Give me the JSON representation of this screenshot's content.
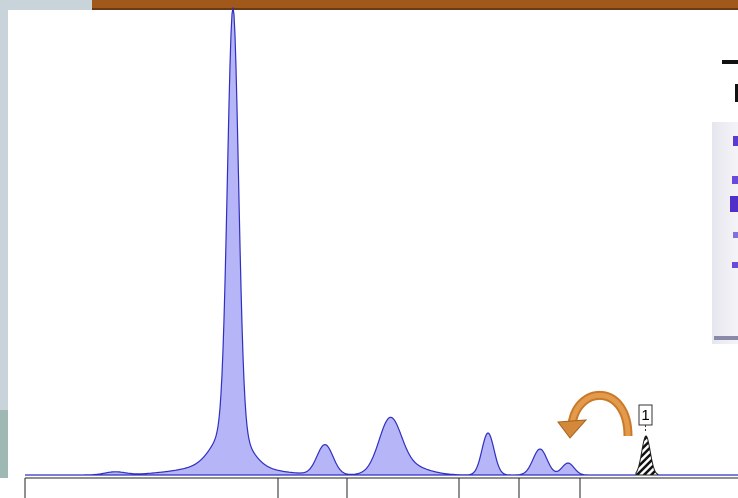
{
  "peak_label": "1"
}
